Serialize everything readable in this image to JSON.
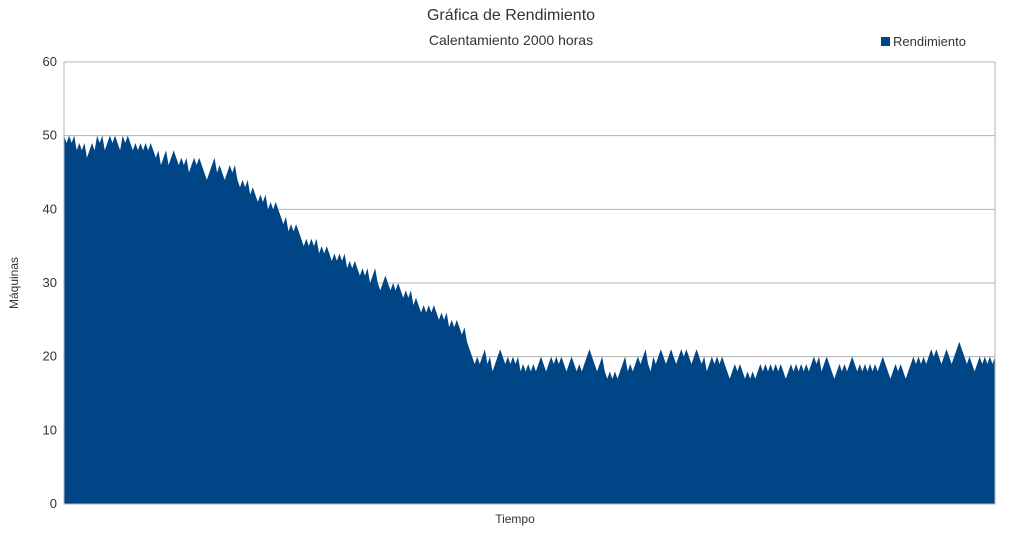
{
  "chart_data": {
    "type": "area",
    "title": "Gráfica de Rendimiento",
    "subtitle": "Calentamiento 2000 horas",
    "xlabel": "Tiempo",
    "ylabel": "Máquinas",
    "ylim": [
      0,
      60
    ],
    "yticks": [
      "0",
      "10",
      "20",
      "30",
      "40",
      "50",
      "60"
    ],
    "grid": true,
    "legend_position": "top-right",
    "series": [
      {
        "name": "Rendimiento",
        "color": "#004586",
        "values": [
          50,
          49,
          50,
          49,
          50,
          48,
          49,
          48,
          49,
          47,
          48,
          49,
          48,
          50,
          49,
          50,
          48,
          49,
          50,
          49,
          50,
          49,
          48,
          50,
          49,
          50,
          49,
          48,
          49,
          48,
          49,
          48,
          49,
          48,
          49,
          48,
          47,
          48,
          46,
          47,
          48,
          46,
          47,
          48,
          47,
          46,
          47,
          46,
          47,
          45,
          46,
          47,
          46,
          47,
          46,
          45,
          44,
          45,
          46,
          47,
          45,
          46,
          45,
          44,
          45,
          46,
          45,
          46,
          44,
          43,
          44,
          43,
          44,
          42,
          43,
          42,
          41,
          42,
          41,
          42,
          40,
          41,
          40,
          41,
          40,
          39,
          38,
          39,
          37,
          38,
          37,
          38,
          37,
          36,
          35,
          36,
          35,
          36,
          35,
          36,
          34,
          35,
          34,
          35,
          34,
          33,
          34,
          33,
          34,
          33,
          34,
          32,
          33,
          32,
          33,
          32,
          31,
          32,
          31,
          32,
          30,
          31,
          32,
          30,
          29,
          30,
          31,
          30,
          29,
          30,
          29,
          30,
          29,
          28,
          29,
          28,
          29,
          27,
          28,
          27,
          26,
          27,
          26,
          27,
          26,
          27,
          26,
          25,
          26,
          25,
          26,
          24,
          25,
          24,
          25,
          24,
          23,
          24,
          22,
          21,
          20,
          19,
          20,
          19,
          20,
          21,
          19,
          20,
          18,
          19,
          20,
          21,
          20,
          19,
          20,
          19,
          20,
          19,
          20,
          18,
          19,
          18,
          19,
          18,
          19,
          18,
          19,
          20,
          19,
          18,
          19,
          20,
          19,
          20,
          19,
          20,
          19,
          18,
          19,
          20,
          19,
          18,
          19,
          18,
          19,
          20,
          21,
          20,
          19,
          18,
          19,
          20,
          18,
          17,
          18,
          17,
          18,
          17,
          18,
          19,
          20,
          18,
          19,
          18,
          19,
          20,
          19,
          20,
          21,
          19,
          18,
          20,
          19,
          20,
          21,
          20,
          19,
          20,
          21,
          20,
          19,
          20,
          21,
          20,
          21,
          20,
          19,
          20,
          21,
          20,
          19,
          20,
          18,
          19,
          20,
          19,
          20,
          19,
          20,
          19,
          18,
          17,
          18,
          19,
          18,
          19,
          18,
          17,
          18,
          17,
          18,
          17,
          18,
          19,
          18,
          19,
          18,
          19,
          18,
          19,
          18,
          19,
          18,
          17,
          18,
          19,
          18,
          19,
          18,
          19,
          18,
          19,
          18,
          19,
          20,
          19,
          20,
          18,
          19,
          20,
          19,
          18,
          17,
          18,
          19,
          18,
          19,
          18,
          19,
          20,
          19,
          18,
          19,
          18,
          19,
          18,
          19,
          18,
          19,
          18,
          19,
          20,
          19,
          18,
          17,
          18,
          19,
          18,
          19,
          18,
          17,
          18,
          19,
          20,
          19,
          20,
          19,
          20,
          19,
          20,
          21,
          20,
          21,
          20,
          19,
          20,
          21,
          20,
          19,
          20,
          21,
          22,
          21,
          20,
          19,
          20,
          19,
          18,
          19,
          20,
          19,
          20,
          19,
          20,
          19,
          20
        ]
      }
    ]
  }
}
